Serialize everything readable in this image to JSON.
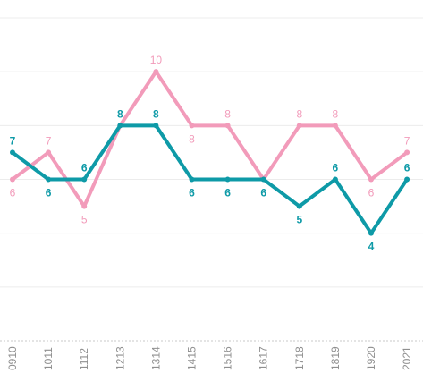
{
  "chart_data": {
    "type": "line",
    "categories": [
      "0910",
      "1011",
      "1112",
      "1213",
      "1314",
      "1415",
      "1516",
      "1617",
      "1718",
      "1819",
      "1920",
      "2021"
    ],
    "ylim": [
      0,
      12
    ],
    "grid": true,
    "series": [
      {
        "color": "#f29bba",
        "values": [
          6,
          7,
          5,
          8,
          10,
          8,
          8,
          6,
          8,
          8,
          6,
          7
        ],
        "labels": [
          "6",
          "7",
          "5",
          "",
          "10",
          "8",
          "8",
          "",
          "8",
          "8",
          "6",
          "7"
        ],
        "label_pos": [
          "below",
          "above",
          "below",
          "above",
          "above",
          "below",
          "above",
          "above",
          "above",
          "above",
          "below",
          "above"
        ]
      },
      {
        "color": "#0e9aa7",
        "values": [
          7,
          6,
          6,
          8,
          8,
          6,
          6,
          6,
          5,
          6,
          4,
          6
        ],
        "labels": [
          "7",
          "6",
          "6",
          "8",
          "8",
          "6",
          "6",
          "6",
          "5",
          "6",
          "4",
          "6"
        ],
        "label_pos": [
          "above",
          "below",
          "above",
          "above",
          "above",
          "below",
          "below",
          "below",
          "below",
          "above",
          "below",
          "above"
        ]
      }
    ]
  }
}
